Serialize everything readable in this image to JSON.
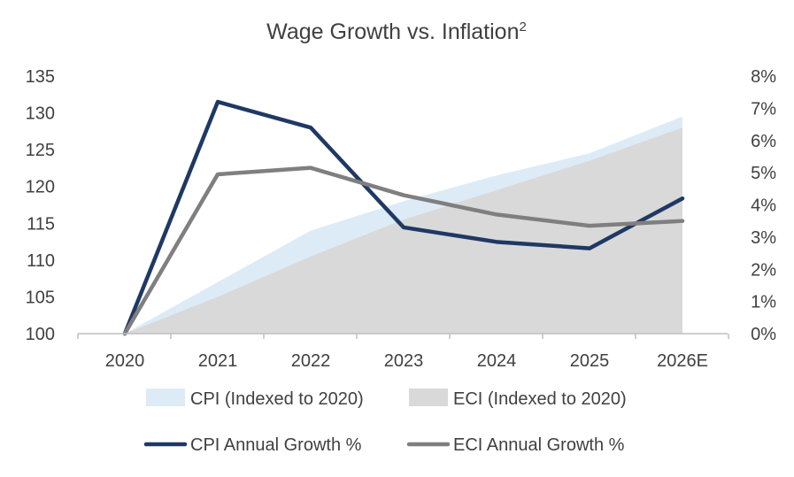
{
  "chart_data": {
    "type": "line",
    "title": "Wage Growth vs. Inflation",
    "title_superscript": "2",
    "categories": [
      "2020",
      "2021",
      "2022",
      "2023",
      "2024",
      "2025",
      "2026E"
    ],
    "y_left": {
      "ticks": [
        "100",
        "105",
        "110",
        "115",
        "120",
        "125",
        "130",
        "135"
      ],
      "ylim": [
        100,
        135
      ]
    },
    "y_right": {
      "ticks": [
        "0%",
        "1%",
        "2%",
        "3%",
        "4%",
        "5%",
        "6%",
        "7%",
        "8%"
      ],
      "ylim": [
        0,
        8
      ]
    },
    "grid": false,
    "legend_position": "bottom",
    "series": [
      {
        "name": "CPI (Indexed to 2020)",
        "kind": "area",
        "axis": "left",
        "color": "#DDEBF7",
        "values": [
          100,
          107,
          114,
          118,
          121.5,
          124.5,
          129.5
        ]
      },
      {
        "name": "ECI (Indexed to 2020)",
        "kind": "area",
        "axis": "left",
        "color": "#D9D9D9",
        "values": [
          100,
          105,
          110.5,
          115.5,
          119.5,
          123.5,
          128
        ]
      },
      {
        "name": "CPI Annual Growth %",
        "kind": "line",
        "axis": "right",
        "color": "#1F3864",
        "values": [
          0,
          7.2,
          6.4,
          3.3,
          2.85,
          2.65,
          4.2
        ]
      },
      {
        "name": "ECI Annual Growth %",
        "kind": "line",
        "axis": "right",
        "color": "#7F7F7F",
        "values": [
          0,
          4.95,
          5.15,
          4.3,
          3.7,
          3.35,
          3.5
        ]
      }
    ]
  }
}
